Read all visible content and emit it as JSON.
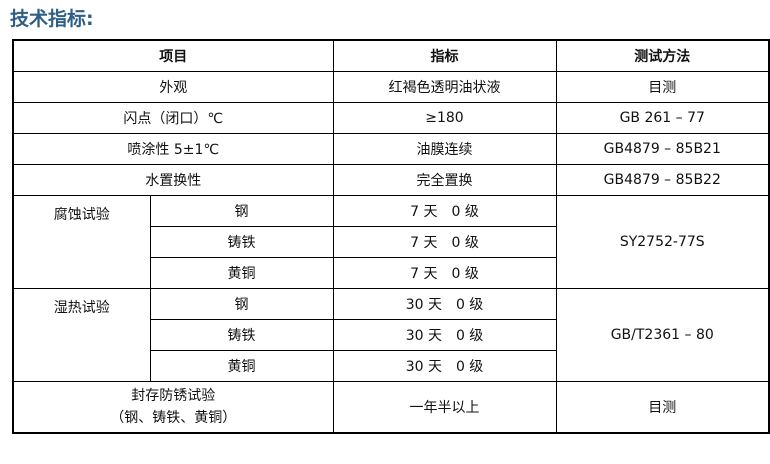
{
  "title": "技术指标:",
  "headers": [
    "项目",
    "指标",
    "测试方法"
  ],
  "rows": [
    {
      "item": "外观",
      "spec": "红褐色透明油状液",
      "method": "目测"
    },
    {
      "item": "闪点（闭口）℃",
      "spec": "≥180",
      "method": "GB 261 – 77"
    },
    {
      "item": "喷涂性 5±1℃",
      "spec": "油膜连续",
      "method": "GB4879 – 85B21"
    },
    {
      "item": "水置换性",
      "spec": "完全置换",
      "method": "GB4879 – 85B22"
    }
  ],
  "groups": [
    {
      "name": "腐蚀试验",
      "method": "SY2752-77S",
      "subs": [
        {
          "metal": "钢",
          "spec": "7 天　0 级"
        },
        {
          "metal": "铸铁",
          "spec": "7 天　0 级"
        },
        {
          "metal": "黄铜",
          "spec": "7 天　0 级"
        }
      ]
    },
    {
      "name": "湿热试验",
      "method": "GB/T2361 – 80",
      "subs": [
        {
          "metal": "钢",
          "spec": "30 天　0 级"
        },
        {
          "metal": "铸铁",
          "spec": "30 天　0 级"
        },
        {
          "metal": "黄铜",
          "spec": "30 天　0 级"
        }
      ]
    }
  ],
  "last": {
    "item_line1": "封存防锈试验",
    "item_line2": "（钢、铸铁、黄铜）",
    "spec": "一年半以上",
    "method": "目测"
  }
}
